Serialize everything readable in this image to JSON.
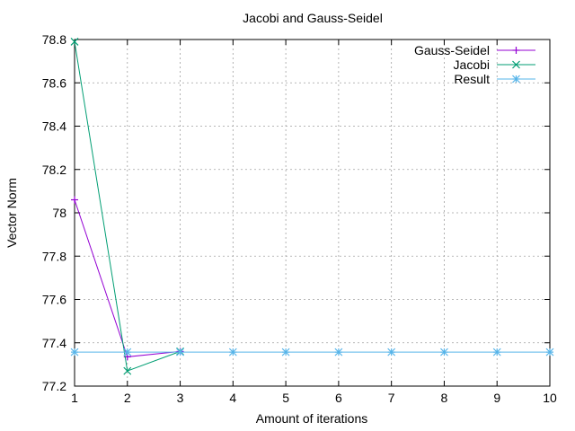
{
  "chart_data": {
    "type": "line",
    "title": "Jacobi and Gauss-Seidel",
    "xlabel": "Amount of iterations",
    "ylabel": "Vector Norm",
    "xlim": [
      1,
      10
    ],
    "ylim": [
      77.2,
      78.8
    ],
    "x_ticks": [
      "1",
      "2",
      "3",
      "4",
      "5",
      "6",
      "7",
      "8",
      "9",
      "10"
    ],
    "y_ticks": [
      "77.2",
      "77.4",
      "77.6",
      "77.8",
      "78",
      "78.2",
      "78.4",
      "78.6",
      "78.8"
    ],
    "grid": true,
    "legend_position": "top-right",
    "series": [
      {
        "name": "Gauss-Seidel",
        "color": "#9400d3",
        "marker": "plus",
        "x": [
          1,
          2,
          3
        ],
        "y": [
          78.06,
          77.335,
          77.36
        ]
      },
      {
        "name": "Jacobi",
        "color": "#009e73",
        "marker": "cross",
        "x": [
          1,
          2,
          3
        ],
        "y": [
          78.79,
          77.27,
          77.36
        ]
      },
      {
        "name": "Result",
        "color": "#56b4e9",
        "marker": "star",
        "x": [
          1,
          2,
          3,
          4,
          5,
          6,
          7,
          8,
          9,
          10
        ],
        "y": [
          77.357,
          77.357,
          77.357,
          77.357,
          77.357,
          77.357,
          77.357,
          77.357,
          77.357,
          77.357
        ]
      }
    ]
  }
}
